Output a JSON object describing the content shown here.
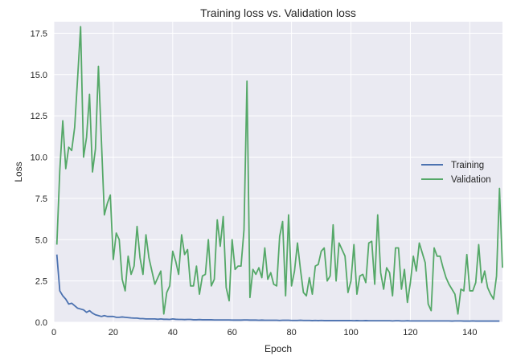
{
  "chart_data": {
    "type": "line",
    "title": "Training loss vs. Validation loss",
    "xlabel": "Epoch",
    "ylabel": "Loss",
    "xlim": [
      0,
      151
    ],
    "ylim": [
      0,
      18.2
    ],
    "xticks": [
      0,
      20,
      40,
      60,
      80,
      100,
      120,
      140
    ],
    "yticks": [
      0.0,
      2.5,
      5.0,
      7.5,
      10.0,
      12.5,
      15.0,
      17.5
    ],
    "xtick_labels": [
      "0",
      "20",
      "40",
      "60",
      "80",
      "100",
      "120",
      "140"
    ],
    "ytick_labels": [
      "0.0",
      "2.5",
      "5.0",
      "7.5",
      "10.0",
      "12.5",
      "15.0",
      "17.5"
    ],
    "grid": true,
    "legend_position": "center-right",
    "colors": {
      "plot_background": "#EAEAF2",
      "grid": "#FFFFFF",
      "training": "#4C72B0",
      "validation": "#55A868"
    },
    "series": [
      {
        "name": "Training",
        "color": "#4C72B0",
        "x_start": 1,
        "values": [
          4.1,
          1.9,
          1.6,
          1.4,
          1.1,
          1.15,
          1.0,
          0.85,
          0.8,
          0.75,
          0.6,
          0.7,
          0.55,
          0.45,
          0.4,
          0.35,
          0.4,
          0.35,
          0.35,
          0.35,
          0.3,
          0.3,
          0.32,
          0.3,
          0.28,
          0.26,
          0.25,
          0.25,
          0.22,
          0.22,
          0.2,
          0.2,
          0.2,
          0.2,
          0.18,
          0.2,
          0.18,
          0.18,
          0.17,
          0.2,
          0.18,
          0.17,
          0.17,
          0.16,
          0.17,
          0.17,
          0.15,
          0.15,
          0.16,
          0.15,
          0.15,
          0.15,
          0.15,
          0.14,
          0.14,
          0.14,
          0.14,
          0.14,
          0.14,
          0.13,
          0.13,
          0.13,
          0.13,
          0.14,
          0.14,
          0.13,
          0.13,
          0.13,
          0.12,
          0.13,
          0.12,
          0.12,
          0.12,
          0.12,
          0.12,
          0.11,
          0.12,
          0.12,
          0.12,
          0.11,
          0.11,
          0.11,
          0.12,
          0.11,
          0.11,
          0.11,
          0.1,
          0.11,
          0.1,
          0.11,
          0.1,
          0.1,
          0.1,
          0.1,
          0.1,
          0.1,
          0.1,
          0.1,
          0.1,
          0.1,
          0.09,
          0.1,
          0.09,
          0.09,
          0.1,
          0.09,
          0.09,
          0.09,
          0.09,
          0.09,
          0.09,
          0.09,
          0.09,
          0.08,
          0.09,
          0.09,
          0.08,
          0.08,
          0.09,
          0.08,
          0.08,
          0.08,
          0.08,
          0.08,
          0.08,
          0.08,
          0.08,
          0.08,
          0.08,
          0.08,
          0.08,
          0.08,
          0.08,
          0.07,
          0.08,
          0.08,
          0.08,
          0.07,
          0.07,
          0.07,
          0.08,
          0.07,
          0.07,
          0.07,
          0.07,
          0.07,
          0.07,
          0.07,
          0.07,
          0.07
        ]
      },
      {
        "name": "Validation",
        "color": "#55A868",
        "x_start": 1,
        "values": [
          4.7,
          9.2,
          12.2,
          9.3,
          10.6,
          10.4,
          11.8,
          14.8,
          17.9,
          10.0,
          11.2,
          13.8,
          9.1,
          10.5,
          15.5,
          11.0,
          6.5,
          7.2,
          7.7,
          3.8,
          5.4,
          5.0,
          2.6,
          1.9,
          4.0,
          2.9,
          3.4,
          5.8,
          3.9,
          2.9,
          5.3,
          3.9,
          3.1,
          2.3,
          2.7,
          3.1,
          0.5,
          1.8,
          2.2,
          4.3,
          3.7,
          2.9,
          5.3,
          4.1,
          4.4,
          2.2,
          2.2,
          3.4,
          1.7,
          2.8,
          2.9,
          5.0,
          2.2,
          2.6,
          6.2,
          4.6,
          6.4,
          2.1,
          1.3,
          5.0,
          3.2,
          3.4,
          3.4,
          5.6,
          14.6,
          1.5,
          3.2,
          2.9,
          3.3,
          2.7,
          4.5,
          2.6,
          3.0,
          2.3,
          2.2,
          5.2,
          6.1,
          1.6,
          6.5,
          2.2,
          3.1,
          4.8,
          3.2,
          1.8,
          1.6,
          2.7,
          1.7,
          3.4,
          3.5,
          4.3,
          4.5,
          2.5,
          2.8,
          5.9,
          2.5,
          4.8,
          4.4,
          4.0,
          1.8,
          2.5,
          4.7,
          1.7,
          2.8,
          2.9,
          2.4,
          4.8,
          4.9,
          2.3,
          6.5,
          3.0,
          2.0,
          3.3,
          3.0,
          1.6,
          4.5,
          4.5,
          2.0,
          3.2,
          1.2,
          2.4,
          4.0,
          3.1,
          4.8,
          4.2,
          3.6,
          1.1,
          0.7,
          4.5,
          4.0,
          4.0,
          3.3,
          2.7,
          2.3,
          2.0,
          1.7,
          0.5,
          2.0,
          1.9,
          4.1,
          1.9,
          1.9,
          2.4,
          4.7,
          2.4,
          3.1,
          2.1,
          1.7,
          1.4,
          2.8,
          8.1,
          3.3
        ]
      }
    ]
  }
}
